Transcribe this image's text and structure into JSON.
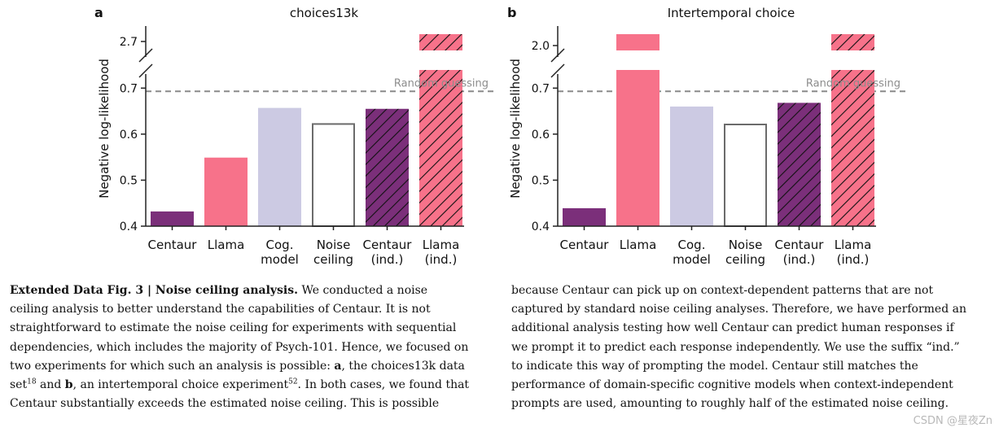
{
  "chart_data": [
    {
      "panel": "a",
      "type": "bar",
      "title": "choices13k",
      "ylabel": "Negative log-likelihood",
      "categories": [
        [
          "Centaur"
        ],
        [
          "Llama"
        ],
        [
          "Cog.",
          "model"
        ],
        [
          "Noise",
          "ceiling"
        ],
        [
          "Centaur",
          "(ind.)"
        ],
        [
          "Llama",
          "(ind.)"
        ]
      ],
      "values": [
        0.432,
        0.549,
        0.657,
        0.622,
        0.655,
        2.7
      ],
      "styles": [
        "centaur",
        "llama",
        "cog",
        "noise",
        "centaur-hatch",
        "llama-hatch"
      ],
      "ylim_lower": [
        0.4,
        0.72
      ],
      "ylim_upper": [
        2.65,
        2.75
      ],
      "yticks_lower": [
        0.4,
        0.5,
        0.6,
        0.7
      ],
      "yticks_upper": [
        2.7
      ],
      "random_guessing": 0.693,
      "random_label": "Random guessing"
    },
    {
      "panel": "b",
      "type": "bar",
      "title": "Intertemporal choice",
      "ylabel": "Negative log-likelihood",
      "categories": [
        [
          "Centaur"
        ],
        [
          "Llama"
        ],
        [
          "Cog.",
          "model"
        ],
        [
          "Noise",
          "ceiling"
        ],
        [
          "Centaur",
          "(ind.)"
        ],
        [
          "Llama",
          "(ind.)"
        ]
      ],
      "values": [
        0.439,
        2.03,
        0.66,
        0.621,
        0.668,
        2.03
      ],
      "styles": [
        "centaur",
        "llama",
        "cog",
        "noise",
        "centaur-hatch",
        "llama-hatch"
      ],
      "ylim_lower": [
        0.4,
        0.72
      ],
      "ylim_upper": [
        1.95,
        2.1
      ],
      "yticks_lower": [
        0.4,
        0.5,
        0.6,
        0.7
      ],
      "yticks_upper": [
        2.0
      ],
      "random_guessing": 0.693,
      "random_label": "Random guessing"
    }
  ],
  "colors": {
    "centaur": "#7b2f7a",
    "llama": "#f7728a",
    "cog": "#cccae3",
    "noise_edge": "#6b6b6b",
    "axis": "#222222",
    "dash": "#8a8a8a",
    "random_label": "#8c8c8c"
  },
  "caption": {
    "fig_label": "Extended Data Fig. 3 | Noise ceiling analysis.",
    "left": {
      "l1": "We conducted a noise",
      "l2": "ceiling analysis to better understand the capabilities of Centaur. It is not",
      "l3": "straightforward to estimate the noise ceiling for experiments with sequential",
      "l4": "dependencies, which includes the majority of Psych-101. Hence, we focused on",
      "l5a": "two experiments for which such an analysis is possible: ",
      "l5b": "a",
      "l5c": ", the choices13k data",
      "l6a": "set",
      "l6sup": "18",
      "l6b": " and ",
      "l6c": "b",
      "l6d": ", an intertemporal choice experiment",
      "l6sup2": "52",
      "l6e": ". In both cases, we found that",
      "l7": "Centaur substantially exceeds the estimated noise ceiling. This is possible"
    },
    "right": {
      "l1": "because Centaur can pick up on context-dependent patterns that are not",
      "l2": "captured by standard noise ceiling analyses. Therefore, we have performed an",
      "l3": "additional analysis testing how well Centaur can predict human responses if",
      "l4": "we prompt it to predict each response independently. We use the suffix “ind.”",
      "l5": "to indicate this way of prompting the model. Centaur still matches the",
      "l6": "performance of domain-specific cognitive models when context-independent",
      "l7": "prompts are used, amounting to roughly half of the estimated noise ceiling."
    }
  },
  "watermark": "CSDN @星夜Zn"
}
